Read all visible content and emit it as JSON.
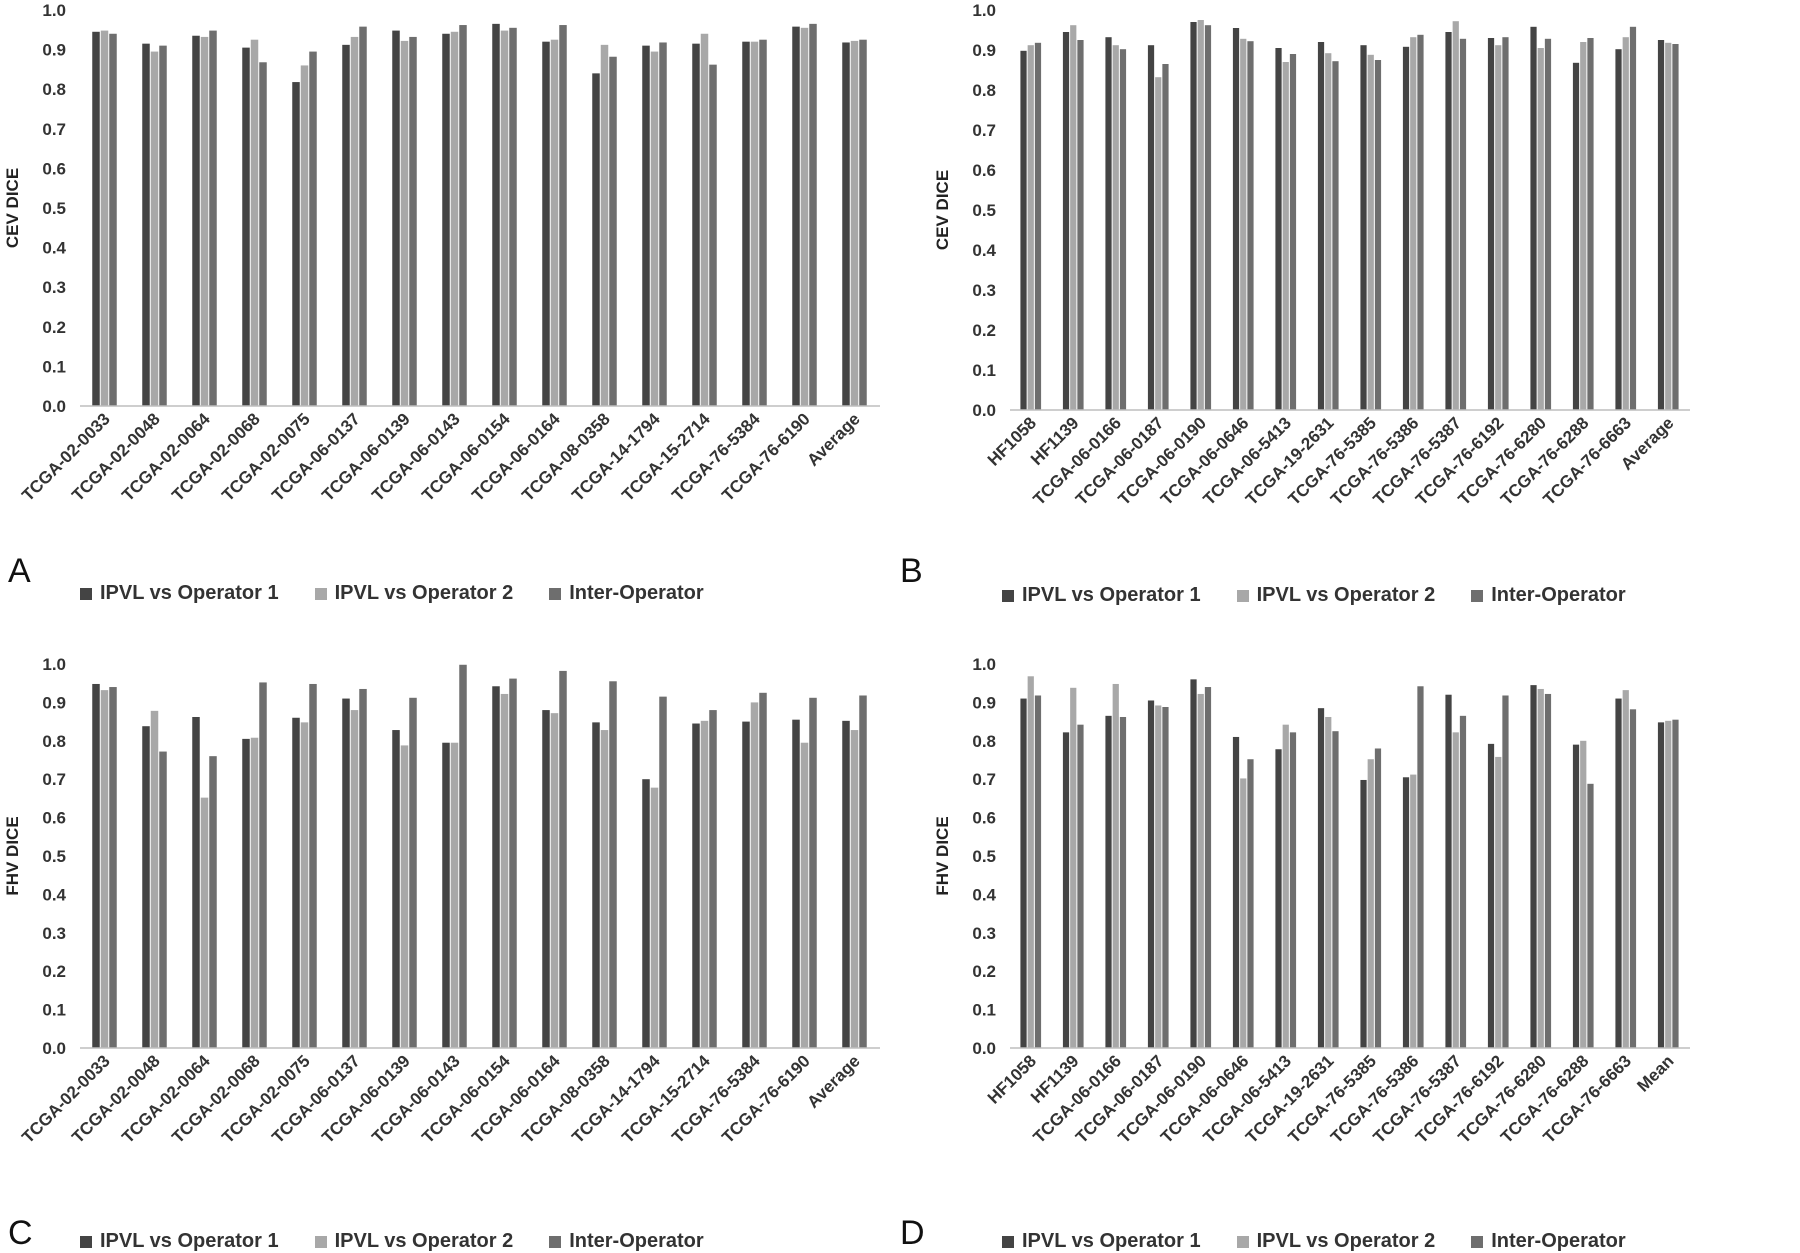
{
  "figure": {
    "legend_series": [
      "IPVL vs Operator 1",
      "IPVL vs Operator 2",
      "Inter-Operator"
    ],
    "colors": [
      "#444444",
      "#a8a8a8",
      "#6e6e6e"
    ]
  },
  "chart_data": [
    {
      "panel": "A",
      "type": "bar",
      "ylabel": "CEV DICE",
      "ylim": [
        0,
        1
      ],
      "yticks": [
        "0.0",
        "0.1",
        "0.2",
        "0.3",
        "0.4",
        "0.5",
        "0.6",
        "0.7",
        "0.8",
        "0.9",
        "1.0"
      ],
      "grid": false,
      "legend": "bottom",
      "categories": [
        "TCGA-02-0033",
        "TCGA-02-0048",
        "TCGA-02-0064",
        "TCGA-02-0068",
        "TCGA-02-0075",
        "TCGA-06-0137",
        "TCGA-06-0139",
        "TCGA-06-0143",
        "TCGA-06-0154",
        "TCGA-06-0164",
        "TCGA-08-0358",
        "TCGA-14-1794",
        "TCGA-15-2714",
        "TCGA-76-5384",
        "TCGA-76-6190",
        "Average"
      ],
      "series": [
        {
          "name": "IPVL vs Operator 1",
          "values": [
            0.945,
            0.915,
            0.935,
            0.905,
            0.818,
            0.912,
            0.948,
            0.94,
            0.965,
            0.92,
            0.84,
            0.91,
            0.915,
            0.92,
            0.958,
            0.918
          ]
        },
        {
          "name": "IPVL vs Operator 2",
          "values": [
            0.948,
            0.895,
            0.932,
            0.925,
            0.86,
            0.932,
            0.922,
            0.945,
            0.948,
            0.925,
            0.912,
            0.895,
            0.94,
            0.92,
            0.955,
            0.922
          ]
        },
        {
          "name": "Inter-Operator",
          "values": [
            0.94,
            0.91,
            0.948,
            0.868,
            0.895,
            0.958,
            0.932,
            0.962,
            0.955,
            0.962,
            0.882,
            0.918,
            0.862,
            0.925,
            0.965,
            0.925
          ]
        }
      ]
    },
    {
      "panel": "B",
      "type": "bar",
      "ylabel": "CEV DICE",
      "ylim": [
        0,
        1
      ],
      "yticks": [
        "0.0",
        "0.1",
        "0.2",
        "0.3",
        "0.4",
        "0.5",
        "0.6",
        "0.7",
        "0.8",
        "0.9",
        "1.0"
      ],
      "grid": false,
      "legend": "bottom",
      "categories": [
        "HF1058",
        "HF1139",
        "TCGA-06-0166",
        "TCGA-06-0187",
        "TCGA-06-0190",
        "TCGA-06-0646",
        "TCGA-06-5413",
        "TCGA-19-2631",
        "TCGA-76-5385",
        "TCGA-76-5386",
        "TCGA-76-5387",
        "TCGA-76-6192",
        "TCGA-76-6280",
        "TCGA-76-6288",
        "TCGA-76-6663",
        "Average"
      ],
      "series": [
        {
          "name": "IPVL vs Operator 1",
          "values": [
            0.898,
            0.945,
            0.932,
            0.912,
            0.97,
            0.955,
            0.905,
            0.92,
            0.912,
            0.908,
            0.945,
            0.93,
            0.958,
            0.868,
            0.902,
            0.925
          ]
        },
        {
          "name": "IPVL vs Operator 2",
          "values": [
            0.912,
            0.962,
            0.912,
            0.832,
            0.975,
            0.928,
            0.87,
            0.892,
            0.888,
            0.932,
            0.972,
            0.912,
            0.905,
            0.92,
            0.932,
            0.918
          ]
        },
        {
          "name": "Inter-Operator",
          "values": [
            0.918,
            0.925,
            0.902,
            0.865,
            0.962,
            0.922,
            0.89,
            0.872,
            0.875,
            0.938,
            0.928,
            0.932,
            0.928,
            0.93,
            0.958,
            0.915
          ]
        }
      ]
    },
    {
      "panel": "C",
      "type": "bar",
      "ylabel": "FHV DICE",
      "ylim": [
        0,
        1
      ],
      "yticks": [
        "0.0",
        "0.1",
        "0.2",
        "0.3",
        "0.4",
        "0.5",
        "0.6",
        "0.7",
        "0.8",
        "0.9",
        "1.0"
      ],
      "grid": false,
      "legend": "bottom",
      "categories": [
        "TCGA-02-0033",
        "TCGA-02-0048",
        "TCGA-02-0064",
        "TCGA-02-0068",
        "TCGA-02-0075",
        "TCGA-06-0137",
        "TCGA-06-0139",
        "TCGA-06-0143",
        "TCGA-06-0154",
        "TCGA-06-0164",
        "TCGA-08-0358",
        "TCGA-14-1794",
        "TCGA-15-2714",
        "TCGA-76-5384",
        "TCGA-76-6190",
        "Average"
      ],
      "series": [
        {
          "name": "IPVL vs Operator 1",
          "values": [
            0.948,
            0.838,
            0.862,
            0.805,
            0.86,
            0.91,
            0.828,
            0.795,
            0.942,
            0.88,
            0.848,
            0.7,
            0.845,
            0.85,
            0.855,
            0.852
          ]
        },
        {
          "name": "IPVL vs Operator 2",
          "values": [
            0.932,
            0.878,
            0.652,
            0.808,
            0.848,
            0.88,
            0.788,
            0.795,
            0.922,
            0.872,
            0.828,
            0.678,
            0.852,
            0.9,
            0.795,
            0.828
          ]
        },
        {
          "name": "Inter-Operator",
          "values": [
            0.94,
            0.772,
            0.76,
            0.952,
            0.948,
            0.935,
            0.912,
            0.998,
            0.962,
            0.982,
            0.955,
            0.915,
            0.88,
            0.925,
            0.912,
            0.918
          ]
        }
      ]
    },
    {
      "panel": "D",
      "type": "bar",
      "ylabel": "FHV DICE",
      "ylim": [
        0,
        1
      ],
      "yticks": [
        "0.0",
        "0.1",
        "0.2",
        "0.3",
        "0.4",
        "0.5",
        "0.6",
        "0.7",
        "0.8",
        "0.9",
        "1.0"
      ],
      "grid": false,
      "legend": "bottom",
      "categories": [
        "HF1058",
        "HF1139",
        "TCGA-06-0166",
        "TCGA-06-0187",
        "TCGA-06-0190",
        "TCGA-06-0646",
        "TCGA-06-5413",
        "TCGA-19-2631",
        "TCGA-76-5385",
        "TCGA-76-5386",
        "TCGA-76-5387",
        "TCGA-76-6192",
        "TCGA-76-6280",
        "TCGA-76-6288",
        "TCGA-76-6663",
        "Mean"
      ],
      "series": [
        {
          "name": "IPVL vs Operator 1",
          "values": [
            0.91,
            0.822,
            0.865,
            0.905,
            0.96,
            0.81,
            0.778,
            0.885,
            0.698,
            0.705,
            0.92,
            0.792,
            0.945,
            0.79,
            0.91,
            0.848
          ]
        },
        {
          "name": "IPVL vs Operator 2",
          "values": [
            0.968,
            0.938,
            0.948,
            0.892,
            0.922,
            0.702,
            0.842,
            0.862,
            0.752,
            0.712,
            0.822,
            0.758,
            0.935,
            0.8,
            0.932,
            0.852
          ]
        },
        {
          "name": "Inter-Operator",
          "values": [
            0.918,
            0.842,
            0.862,
            0.888,
            0.94,
            0.752,
            0.822,
            0.825,
            0.78,
            0.942,
            0.865,
            0.918,
            0.922,
            0.688,
            0.882,
            0.855
          ]
        }
      ]
    }
  ]
}
